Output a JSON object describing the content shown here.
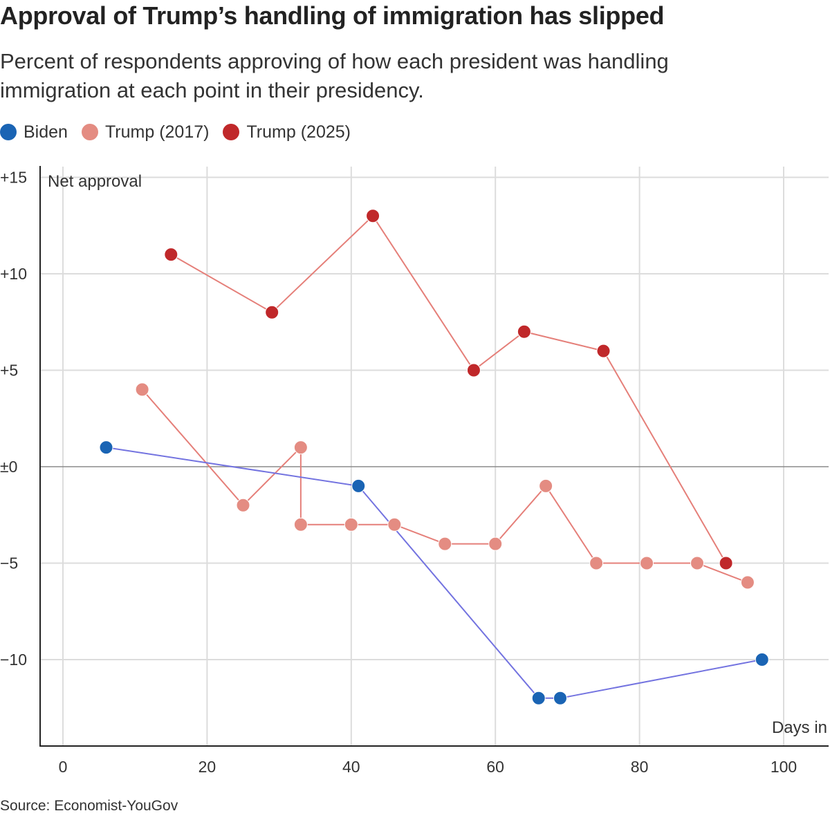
{
  "header": {
    "title": "Approval of Trump’s handling of immigration has slipped",
    "subtitle": "Percent of respondents approving of how each president was handling immigration at each point in their presidency."
  },
  "legend": [
    {
      "label": "Biden",
      "color": "#1a64b4"
    },
    {
      "label": "Trump (2017)",
      "color": "#e48c82"
    },
    {
      "label": "Trump (2025)",
      "color": "#c0282a"
    }
  ],
  "footer": {
    "source": "Source: Economist-YouGov"
  },
  "chart_data": {
    "type": "line",
    "ylabel": "Net approval",
    "xlabel": "Days in",
    "xlim": [
      -8,
      105
    ],
    "ylim": [
      -14.5,
      15.5
    ],
    "xticks": [
      0,
      20,
      40,
      60,
      80,
      100
    ],
    "xtick_labels": [
      "0",
      "20",
      "40",
      "60",
      "80",
      "100"
    ],
    "yticks": [
      15,
      10,
      5,
      0,
      -5,
      -10
    ],
    "ytick_labels": [
      "+15",
      "+10",
      "+5",
      "±0",
      "−5",
      "−10"
    ],
    "series": [
      {
        "name": "Trump (2017)",
        "color": "#e48c82",
        "line_color": "#e57f79",
        "x": [
          11,
          25,
          33,
          33,
          40,
          46,
          53,
          60,
          67,
          74,
          81,
          88,
          95
        ],
        "y": [
          4,
          -2,
          1,
          -3,
          -3,
          -3,
          -4,
          -4,
          -1,
          -5,
          -5,
          -5,
          -6
        ]
      },
      {
        "name": "Trump (2025)",
        "color": "#c0282a",
        "line_color": "#e57f79",
        "x": [
          15,
          29,
          43,
          57,
          64,
          75,
          92
        ],
        "y": [
          11,
          8,
          13,
          5,
          7,
          6,
          -5
        ]
      },
      {
        "name": "Biden",
        "color": "#1a64b4",
        "line_color": "#7373e0",
        "x": [
          6,
          41,
          66,
          69,
          97
        ],
        "y": [
          1,
          -1,
          -12,
          -12,
          -10
        ]
      }
    ]
  }
}
